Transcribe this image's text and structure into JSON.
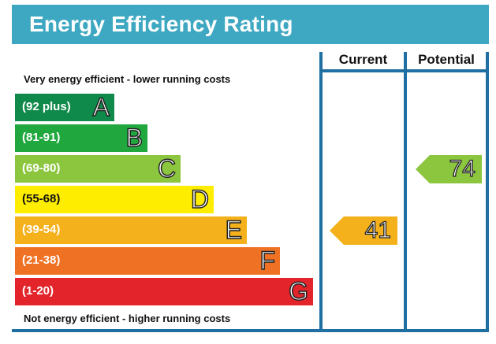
{
  "chart_data": {
    "type": "bar",
    "title": "Energy Efficiency Rating",
    "top_caption": "Very energy efficient - lower running costs",
    "bottom_caption": "Not energy efficient - higher running costs",
    "columns": [
      "Current",
      "Potential"
    ],
    "bands": [
      {
        "letter": "A",
        "range": "(92 plus)",
        "color": "#0f8a4a",
        "min": 92,
        "max": 100
      },
      {
        "letter": "B",
        "range": "(81-91)",
        "color": "#20a83e",
        "min": 81,
        "max": 91
      },
      {
        "letter": "C",
        "range": "(69-80)",
        "color": "#8cc63f",
        "min": 69,
        "max": 80
      },
      {
        "letter": "D",
        "range": "(55-68)",
        "color": "#ffed00",
        "min": 55,
        "max": 68
      },
      {
        "letter": "E",
        "range": "(39-54)",
        "color": "#f5b11c",
        "min": 39,
        "max": 54
      },
      {
        "letter": "F",
        "range": "(21-38)",
        "color": "#ef7124",
        "min": 21,
        "max": 38
      },
      {
        "letter": "G",
        "range": "(1-20)",
        "color": "#e3242b",
        "min": 1,
        "max": 20
      }
    ],
    "current": {
      "value": 41,
      "band": "E",
      "color": "#f5b11c"
    },
    "potential": {
      "value": 74,
      "band": "C",
      "color": "#8cc63f"
    }
  },
  "colors": {
    "header": "#3ea8c2",
    "frame": "#1f6fa3"
  }
}
